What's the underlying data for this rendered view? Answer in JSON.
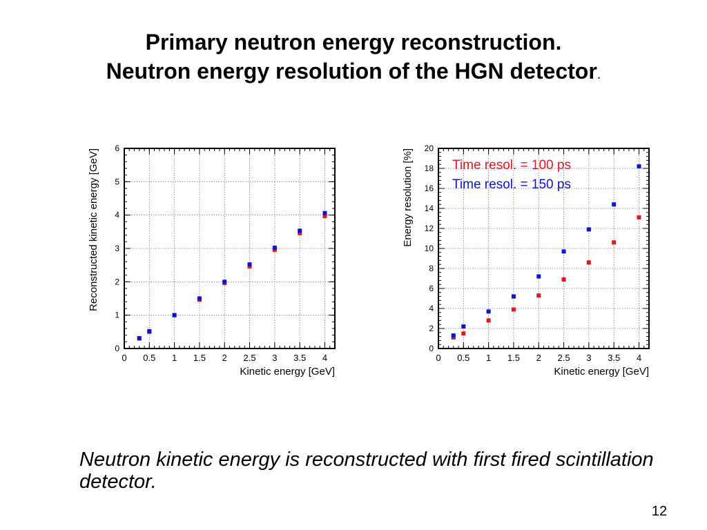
{
  "slide": {
    "title_line1": "Primary neutron energy reconstruction.",
    "title_line2": "Neutron energy resolution of the HGN detector",
    "title_dot": ".",
    "caption": "Neutron kinetic energy is reconstructed with first fired scintillation detector.",
    "page_number": "12"
  },
  "colors": {
    "red": "#e8141e",
    "blue": "#0a14d8"
  },
  "chart_data": [
    {
      "type": "scatter",
      "title": "",
      "xlabel": "Kinetic energy [GeV]",
      "ylabel": "Reconstructed kinetic energy [GeV]",
      "xlim": [
        0,
        4.2
      ],
      "ylim": [
        0,
        6
      ],
      "x_ticks": [
        0,
        0.5,
        1,
        1.5,
        2,
        2.5,
        3,
        3.5,
        4
      ],
      "x_tick_labels": [
        "0",
        "0.5",
        "1",
        "1.5",
        "2",
        "2.5",
        "3",
        "3.5",
        "4"
      ],
      "y_ticks": [
        0,
        1,
        2,
        3,
        4,
        5,
        6
      ],
      "y_tick_labels": [
        "0",
        "1",
        "2",
        "3",
        "4",
        "5",
        "6"
      ],
      "grid": true,
      "series": [
        {
          "color": "#e8141e",
          "x": [
            0.3,
            0.5,
            1,
            1.5,
            2,
            2.5,
            3,
            3.5,
            4
          ],
          "y": [
            0.3,
            0.5,
            1.0,
            1.46,
            1.96,
            2.46,
            2.96,
            3.46,
            3.97
          ]
        },
        {
          "color": "#0a14d8",
          "x": [
            0.3,
            0.5,
            1,
            1.5,
            2,
            2.5,
            3,
            3.5,
            4
          ],
          "y": [
            0.31,
            0.52,
            1.0,
            1.5,
            2.0,
            2.52,
            3.02,
            3.53,
            4.06
          ]
        }
      ],
      "legend": []
    },
    {
      "type": "scatter",
      "title": "",
      "xlabel": "Kinetic energy [GeV]",
      "ylabel": "Energy resolution [%]",
      "xlim": [
        0,
        4.2
      ],
      "ylim": [
        0,
        20
      ],
      "x_ticks": [
        0,
        0.5,
        1,
        1.5,
        2,
        2.5,
        3,
        3.5,
        4
      ],
      "x_tick_labels": [
        "0",
        "0.5",
        "1",
        "1.5",
        "2",
        "2.5",
        "3",
        "3.5",
        "4"
      ],
      "y_ticks": [
        0,
        2,
        4,
        6,
        8,
        10,
        12,
        14,
        16,
        18,
        20
      ],
      "y_tick_labels": [
        "0",
        "2",
        "4",
        "6",
        "8",
        "10",
        "12",
        "14",
        "16",
        "18",
        "20"
      ],
      "grid": true,
      "legend_placement": "top-left",
      "series": [
        {
          "name": "Time resol. = 100 ps",
          "color": "#e8141e",
          "x": [
            0.3,
            0.5,
            1,
            1.5,
            2,
            2.5,
            3,
            3.5,
            4
          ],
          "y": [
            1.1,
            1.5,
            2.8,
            3.9,
            5.3,
            6.9,
            8.6,
            10.6,
            13.1
          ]
        },
        {
          "name": "Time resol. = 150 ps",
          "color": "#0a14d8",
          "x": [
            0.3,
            0.5,
            1,
            1.5,
            2,
            2.5,
            3,
            3.5,
            4
          ],
          "y": [
            1.3,
            2.2,
            3.7,
            5.2,
            7.2,
            9.7,
            11.9,
            14.4,
            18.2
          ]
        }
      ]
    }
  ]
}
